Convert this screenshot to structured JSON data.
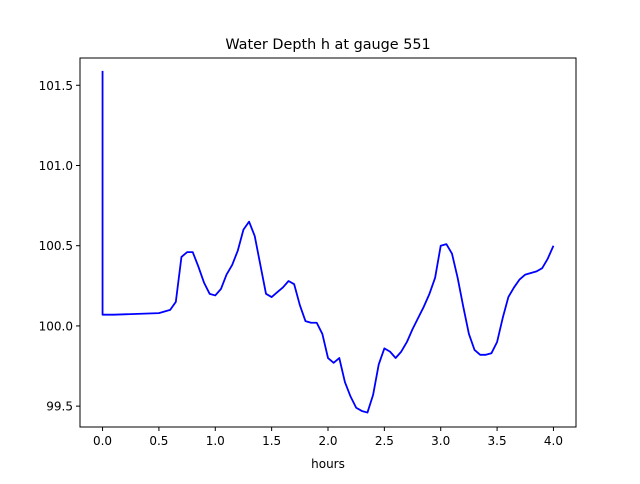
{
  "chart_data": {
    "type": "line",
    "title": "Water Depth h at gauge 551",
    "xlabel": "hours",
    "ylabel": "",
    "xlim": [
      -0.2,
      4.2
    ],
    "ylim": [
      99.37,
      101.67
    ],
    "xticks": [
      0.0,
      0.5,
      1.0,
      1.5,
      2.0,
      2.5,
      3.0,
      3.5,
      4.0
    ],
    "xtick_labels": [
      "0.0",
      "0.5",
      "1.0",
      "1.5",
      "2.0",
      "2.5",
      "3.0",
      "3.5",
      "4.0"
    ],
    "yticks": [
      99.5,
      100.0,
      100.5,
      101.0,
      101.5
    ],
    "ytick_labels": [
      "99.5",
      "100.0",
      "100.5",
      "101.0",
      "101.5"
    ],
    "grid": false,
    "series": [
      {
        "color": "#0000ff",
        "x": [
          0.0,
          0.0,
          0.0,
          0.1,
          0.5,
          0.6,
          0.65,
          0.7,
          0.75,
          0.8,
          0.85,
          0.9,
          0.95,
          1.0,
          1.05,
          1.1,
          1.15,
          1.2,
          1.25,
          1.3,
          1.35,
          1.4,
          1.45,
          1.5,
          1.55,
          1.6,
          1.65,
          1.7,
          1.75,
          1.8,
          1.85,
          1.9,
          1.95,
          2.0,
          2.05,
          2.1,
          2.15,
          2.2,
          2.25,
          2.3,
          2.35,
          2.4,
          2.45,
          2.5,
          2.55,
          2.6,
          2.65,
          2.7,
          2.75,
          2.8,
          2.85,
          2.9,
          2.95,
          3.0,
          3.05,
          3.1,
          3.15,
          3.2,
          3.25,
          3.3,
          3.35,
          3.4,
          3.45,
          3.5,
          3.55,
          3.6,
          3.65,
          3.7,
          3.75,
          3.8,
          3.85,
          3.9,
          3.95,
          4.0
        ],
        "y": [
          101.59,
          101.2,
          100.07,
          100.07,
          100.08,
          100.1,
          100.15,
          100.43,
          100.46,
          100.46,
          100.37,
          100.27,
          100.2,
          100.19,
          100.23,
          100.32,
          100.38,
          100.47,
          100.6,
          100.65,
          100.56,
          100.38,
          100.2,
          100.18,
          100.21,
          100.24,
          100.28,
          100.26,
          100.13,
          100.03,
          100.02,
          100.02,
          99.95,
          99.8,
          99.77,
          99.8,
          99.65,
          99.56,
          99.49,
          99.47,
          99.46,
          99.57,
          99.76,
          99.86,
          99.84,
          99.8,
          99.84,
          99.9,
          99.98,
          100.05,
          100.12,
          100.2,
          100.3,
          100.5,
          100.51,
          100.45,
          100.3,
          100.12,
          99.95,
          99.85,
          99.82,
          99.82,
          99.83,
          99.9,
          100.05,
          100.18,
          100.24,
          100.29,
          100.32,
          100.33,
          100.34,
          100.36,
          100.42,
          100.5
        ]
      }
    ]
  }
}
